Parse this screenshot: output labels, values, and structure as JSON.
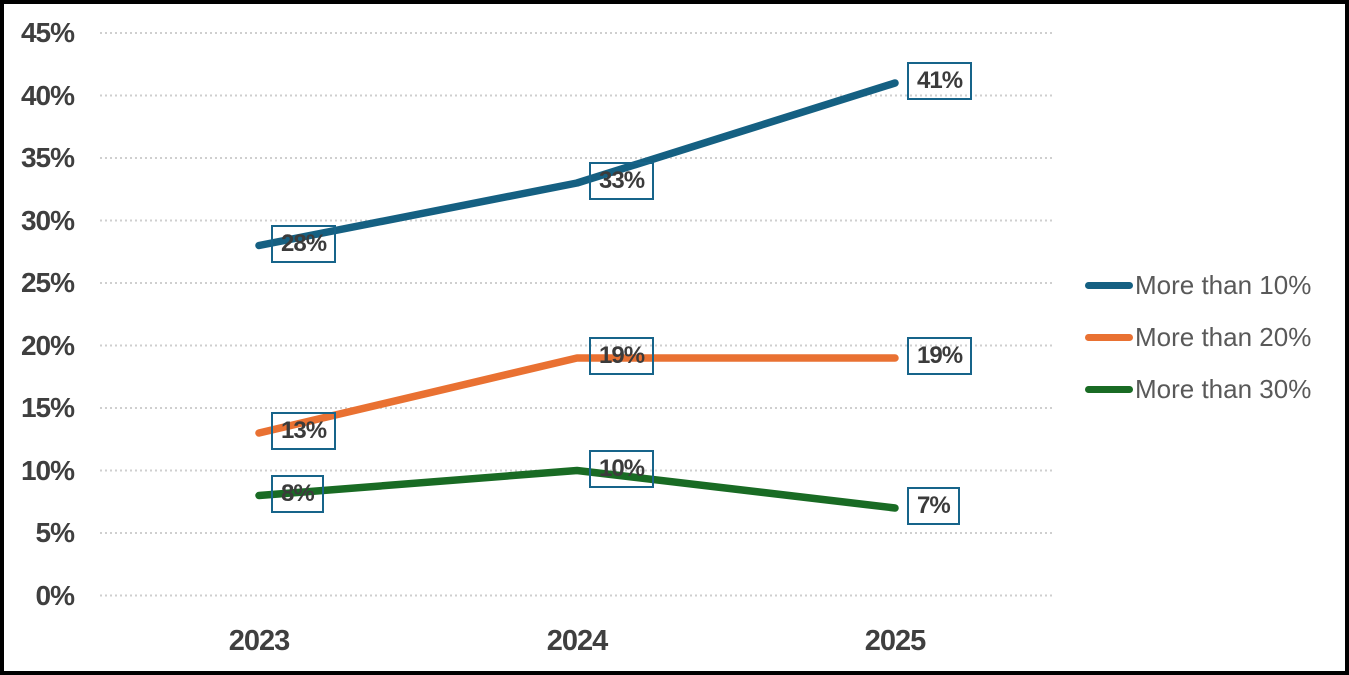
{
  "chart_data": {
    "type": "line",
    "title": "",
    "xlabel": "",
    "ylabel": "",
    "categories": [
      "2023",
      "2024",
      "2025"
    ],
    "series": [
      {
        "name": "More than 10%",
        "color": "#156082",
        "values": [
          28,
          33,
          41
        ],
        "labels": [
          "28%",
          "33%",
          "41%"
        ]
      },
      {
        "name": "More than 20%",
        "color": "#E97132",
        "values": [
          13,
          19,
          19
        ],
        "labels": [
          "13%",
          "19%",
          "19%"
        ]
      },
      {
        "name": "More than 30%",
        "color": "#196B24",
        "values": [
          8,
          10,
          7
        ],
        "labels": [
          "8%",
          "10%",
          "7%"
        ]
      }
    ],
    "ylim": [
      0,
      45
    ],
    "ytick_step": 5,
    "ytick_labels": [
      "0%",
      "5%",
      "10%",
      "15%",
      "20%",
      "25%",
      "30%",
      "35%",
      "40%",
      "45%"
    ],
    "grid": "horizontal dotted gridlines",
    "legend_position": "right"
  },
  "style": {
    "background": "#ffffff",
    "frame_border_color": "#000000",
    "gridline_color": "#cfcfcf",
    "axis_text_color": "#3f3f3f",
    "legend_text_color": "#595959",
    "data_label_text_color": "#3b3b3b",
    "data_label_border_color": "#17648a"
  }
}
